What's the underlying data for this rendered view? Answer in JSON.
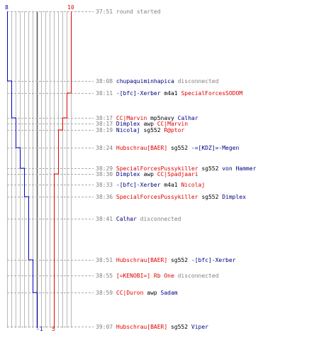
{
  "colors": {
    "team_blue": "#0000c0",
    "team_red": "#e00000",
    "grid": "#b8b8b8",
    "center": "#555555",
    "dash": "#aaaaaa",
    "text_gray": "#808080",
    "name_blue": "#000080"
  },
  "axis": {
    "blue_start": "8",
    "red_start": "10",
    "blue_end": "-1",
    "red_end": "5"
  },
  "events": [
    {
      "time": "37:51",
      "parts": [
        {
          "t": "round started",
          "c": "gray"
        }
      ]
    },
    {
      "time": "38:08",
      "parts": [
        {
          "t": "chupaquiminhapica",
          "c": "blue"
        },
        {
          "t": " disconnected",
          "c": "gray"
        }
      ]
    },
    {
      "time": "38:11",
      "parts": [
        {
          "t": "-[bfc]-Xerber",
          "c": "blue"
        },
        {
          "t": " m4a1 ",
          "c": "dark"
        },
        {
          "t": "SpecialForcesSODOM",
          "c": "red"
        }
      ]
    },
    {
      "time": "38:17",
      "parts": [
        {
          "t": "CC|Marvin",
          "c": "red"
        },
        {
          "t": " mp5navy ",
          "c": "dark"
        },
        {
          "t": "Calhar",
          "c": "blue"
        }
      ]
    },
    {
      "time": "38:17",
      "parts": [
        {
          "t": "Dimplex",
          "c": "blue"
        },
        {
          "t": " awp ",
          "c": "dark"
        },
        {
          "t": "CC|Marvin",
          "c": "red"
        }
      ]
    },
    {
      "time": "38:19",
      "parts": [
        {
          "t": "Nicolaj",
          "c": "blue"
        },
        {
          "t": " sg552 ",
          "c": "dark"
        },
        {
          "t": "R@ptor",
          "c": "red"
        }
      ]
    },
    {
      "time": "38:24",
      "parts": [
        {
          "t": "Hubschrau[BAER]",
          "c": "red"
        },
        {
          "t": " sg552 ",
          "c": "dark"
        },
        {
          "t": "-=[KDZ]=-Megen",
          "c": "blue"
        }
      ]
    },
    {
      "time": "38:29",
      "parts": [
        {
          "t": "SpecialForcesPussykiller",
          "c": "red"
        },
        {
          "t": " sg552 ",
          "c": "dark"
        },
        {
          "t": "von Hammer",
          "c": "blue"
        }
      ]
    },
    {
      "time": "38:30",
      "parts": [
        {
          "t": "Dimplex",
          "c": "blue"
        },
        {
          "t": " awp ",
          "c": "dark"
        },
        {
          "t": "CC|Spadjaari",
          "c": "red"
        }
      ]
    },
    {
      "time": "38:33",
      "parts": [
        {
          "t": "-[bfc]-Xerber",
          "c": "blue"
        },
        {
          "t": " m4a1 ",
          "c": "dark"
        },
        {
          "t": "Nicolaj",
          "c": "red"
        }
      ]
    },
    {
      "time": "38:36",
      "parts": [
        {
          "t": "SpecialForcesPussykiller",
          "c": "red"
        },
        {
          "t": " sg552 ",
          "c": "dark"
        },
        {
          "t": "Dimplex",
          "c": "blue"
        }
      ]
    },
    {
      "time": "38:41",
      "parts": [
        {
          "t": "Calhar",
          "c": "blue"
        },
        {
          "t": " disconnected",
          "c": "gray"
        }
      ]
    },
    {
      "time": "38:51",
      "parts": [
        {
          "t": "Hubschrau[BAER]",
          "c": "red"
        },
        {
          "t": " sg552 ",
          "c": "dark"
        },
        {
          "t": "-[bfc]-Xerber",
          "c": "blue"
        }
      ]
    },
    {
      "time": "38:55",
      "parts": [
        {
          "t": "[=KENOBI=]  Rb One",
          "c": "red"
        },
        {
          "t": "  disconnected",
          "c": "gray"
        }
      ]
    },
    {
      "time": "38:59",
      "parts": [
        {
          "t": "CC|Duron",
          "c": "red"
        },
        {
          "t": " awp ",
          "c": "dark"
        },
        {
          "t": "Sadam",
          "c": "blue"
        }
      ]
    },
    {
      "time": "39:07",
      "parts": [
        {
          "t": "Hubschrau[BAER]",
          "c": "red"
        },
        {
          "t": " sg552 ",
          "c": "dark"
        },
        {
          "t": "Viper",
          "c": "blue"
        }
      ]
    }
  ]
}
